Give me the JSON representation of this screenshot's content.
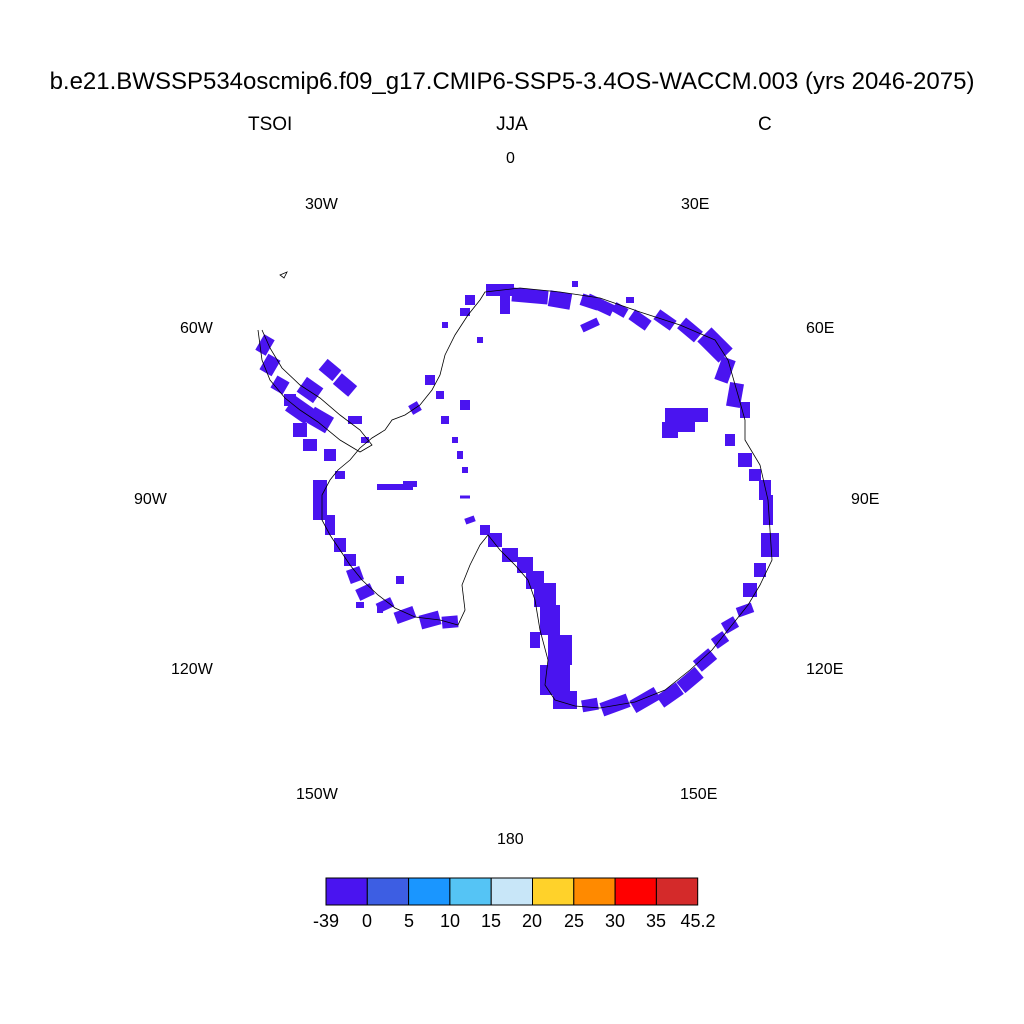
{
  "title": "b.e21.BWSSP534oscmip6.f09_g17.CMIP6-SSP5-3.4OS-WACCM.003 (yrs 2046-2075)",
  "subtitle": {
    "left": "TSOI",
    "center": "JJA",
    "right": "C"
  },
  "longitude_labels": [
    "0",
    "30E",
    "60E",
    "90E",
    "120E",
    "150E",
    "180",
    "150W",
    "120W",
    "90W",
    "60W",
    "30W"
  ],
  "colorbar": {
    "colors": [
      "#4a14f0",
      "#3d5ee3",
      "#1a96ff",
      "#55c4f5",
      "#c8e6f8",
      "#ffd22a",
      "#ff8a00",
      "#ff0000",
      "#d42a2a"
    ],
    "labels": [
      "-39",
      "0",
      "5",
      "10",
      "15",
      "20",
      "25",
      "30",
      "35",
      "45.2"
    ]
  },
  "map": {
    "projection": "south polar stereographic",
    "field_color": "#4a14f0",
    "coastline_color": "#000000"
  }
}
